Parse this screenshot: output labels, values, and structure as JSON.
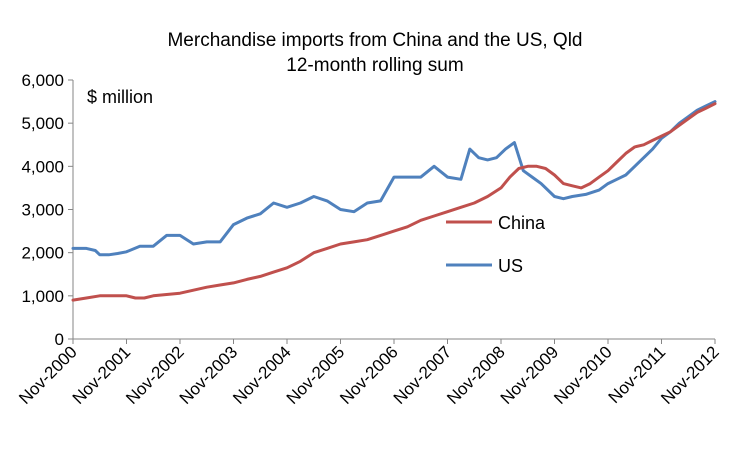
{
  "chart_data": {
    "type": "line",
    "title": "Merchandise imports from China and the US, Qld",
    "subtitle": "12-month rolling sum",
    "unit_label": "$ million",
    "xlabel": "",
    "ylabel": "",
    "ylim": [
      0,
      6000
    ],
    "yticks": [
      0,
      1000,
      2000,
      3000,
      4000,
      5000,
      6000
    ],
    "ytick_labels": [
      "0",
      "1,000",
      "2,000",
      "3,000",
      "4,000",
      "5,000",
      "6,000"
    ],
    "xlim": [
      0,
      144
    ],
    "xtick_positions": [
      0,
      12,
      24,
      36,
      48,
      60,
      72,
      84,
      96,
      108,
      120,
      132,
      144
    ],
    "xtick_labels": [
      "Nov-2000",
      "Nov-2001",
      "Nov-2002",
      "Nov-2003",
      "Nov-2004",
      "Nov-2005",
      "Nov-2006",
      "Nov-2007",
      "Nov-2008",
      "Nov-2009",
      "Nov-2010",
      "Nov-2011",
      "Nov-2012"
    ],
    "x_unit": "months since Nov-2000",
    "series": [
      {
        "name": "China",
        "color": "#c0504d",
        "points": [
          [
            0,
            900
          ],
          [
            3,
            950
          ],
          [
            6,
            1000
          ],
          [
            12,
            1000
          ],
          [
            14,
            950
          ],
          [
            16,
            950
          ],
          [
            18,
            1000
          ],
          [
            21,
            1030
          ],
          [
            24,
            1060
          ],
          [
            27,
            1130
          ],
          [
            30,
            1200
          ],
          [
            33,
            1250
          ],
          [
            36,
            1300
          ],
          [
            39,
            1380
          ],
          [
            42,
            1450
          ],
          [
            45,
            1550
          ],
          [
            48,
            1650
          ],
          [
            51,
            1800
          ],
          [
            54,
            2000
          ],
          [
            57,
            2100
          ],
          [
            60,
            2200
          ],
          [
            63,
            2250
          ],
          [
            66,
            2300
          ],
          [
            69,
            2400
          ],
          [
            72,
            2500
          ],
          [
            75,
            2600
          ],
          [
            78,
            2750
          ],
          [
            81,
            2850
          ],
          [
            84,
            2950
          ],
          [
            87,
            3050
          ],
          [
            90,
            3150
          ],
          [
            93,
            3300
          ],
          [
            96,
            3500
          ],
          [
            98,
            3750
          ],
          [
            100,
            3950
          ],
          [
            102,
            4000
          ],
          [
            104,
            4000
          ],
          [
            106,
            3950
          ],
          [
            108,
            3800
          ],
          [
            110,
            3600
          ],
          [
            112,
            3550
          ],
          [
            114,
            3500
          ],
          [
            116,
            3600
          ],
          [
            118,
            3750
          ],
          [
            120,
            3900
          ],
          [
            122,
            4100
          ],
          [
            124,
            4300
          ],
          [
            126,
            4450
          ],
          [
            128,
            4500
          ],
          [
            130,
            4600
          ],
          [
            132,
            4700
          ],
          [
            134,
            4800
          ],
          [
            136,
            4950
          ],
          [
            138,
            5100
          ],
          [
            140,
            5250
          ],
          [
            142,
            5350
          ],
          [
            144,
            5450
          ]
        ]
      },
      {
        "name": "US",
        "color": "#4f81bd",
        "points": [
          [
            0,
            2100
          ],
          [
            3,
            2100
          ],
          [
            5,
            2050
          ],
          [
            6,
            1950
          ],
          [
            8,
            1950
          ],
          [
            10,
            1980
          ],
          [
            12,
            2020
          ],
          [
            15,
            2150
          ],
          [
            18,
            2150
          ],
          [
            21,
            2400
          ],
          [
            24,
            2400
          ],
          [
            27,
            2200
          ],
          [
            30,
            2250
          ],
          [
            33,
            2250
          ],
          [
            36,
            2650
          ],
          [
            39,
            2800
          ],
          [
            42,
            2900
          ],
          [
            45,
            3150
          ],
          [
            48,
            3050
          ],
          [
            51,
            3150
          ],
          [
            54,
            3300
          ],
          [
            57,
            3200
          ],
          [
            60,
            3000
          ],
          [
            63,
            2950
          ],
          [
            66,
            3150
          ],
          [
            69,
            3200
          ],
          [
            72,
            3750
          ],
          [
            75,
            3750
          ],
          [
            78,
            3750
          ],
          [
            81,
            4000
          ],
          [
            84,
            3750
          ],
          [
            87,
            3700
          ],
          [
            89,
            4400
          ],
          [
            91,
            4200
          ],
          [
            93,
            4150
          ],
          [
            95,
            4200
          ],
          [
            97,
            4400
          ],
          [
            99,
            4550
          ],
          [
            101,
            3900
          ],
          [
            103,
            3750
          ],
          [
            105,
            3600
          ],
          [
            108,
            3300
          ],
          [
            110,
            3250
          ],
          [
            112,
            3300
          ],
          [
            115,
            3350
          ],
          [
            118,
            3450
          ],
          [
            120,
            3600
          ],
          [
            122,
            3700
          ],
          [
            124,
            3800
          ],
          [
            126,
            4000
          ],
          [
            128,
            4200
          ],
          [
            130,
            4400
          ],
          [
            132,
            4650
          ],
          [
            134,
            4800
          ],
          [
            136,
            5000
          ],
          [
            138,
            5150
          ],
          [
            140,
            5300
          ],
          [
            142,
            5400
          ],
          [
            144,
            5500
          ]
        ]
      }
    ],
    "legend": [
      {
        "label": "China",
        "color": "#c0504d"
      },
      {
        "label": "US",
        "color": "#4f81bd"
      }
    ],
    "grid": false
  }
}
